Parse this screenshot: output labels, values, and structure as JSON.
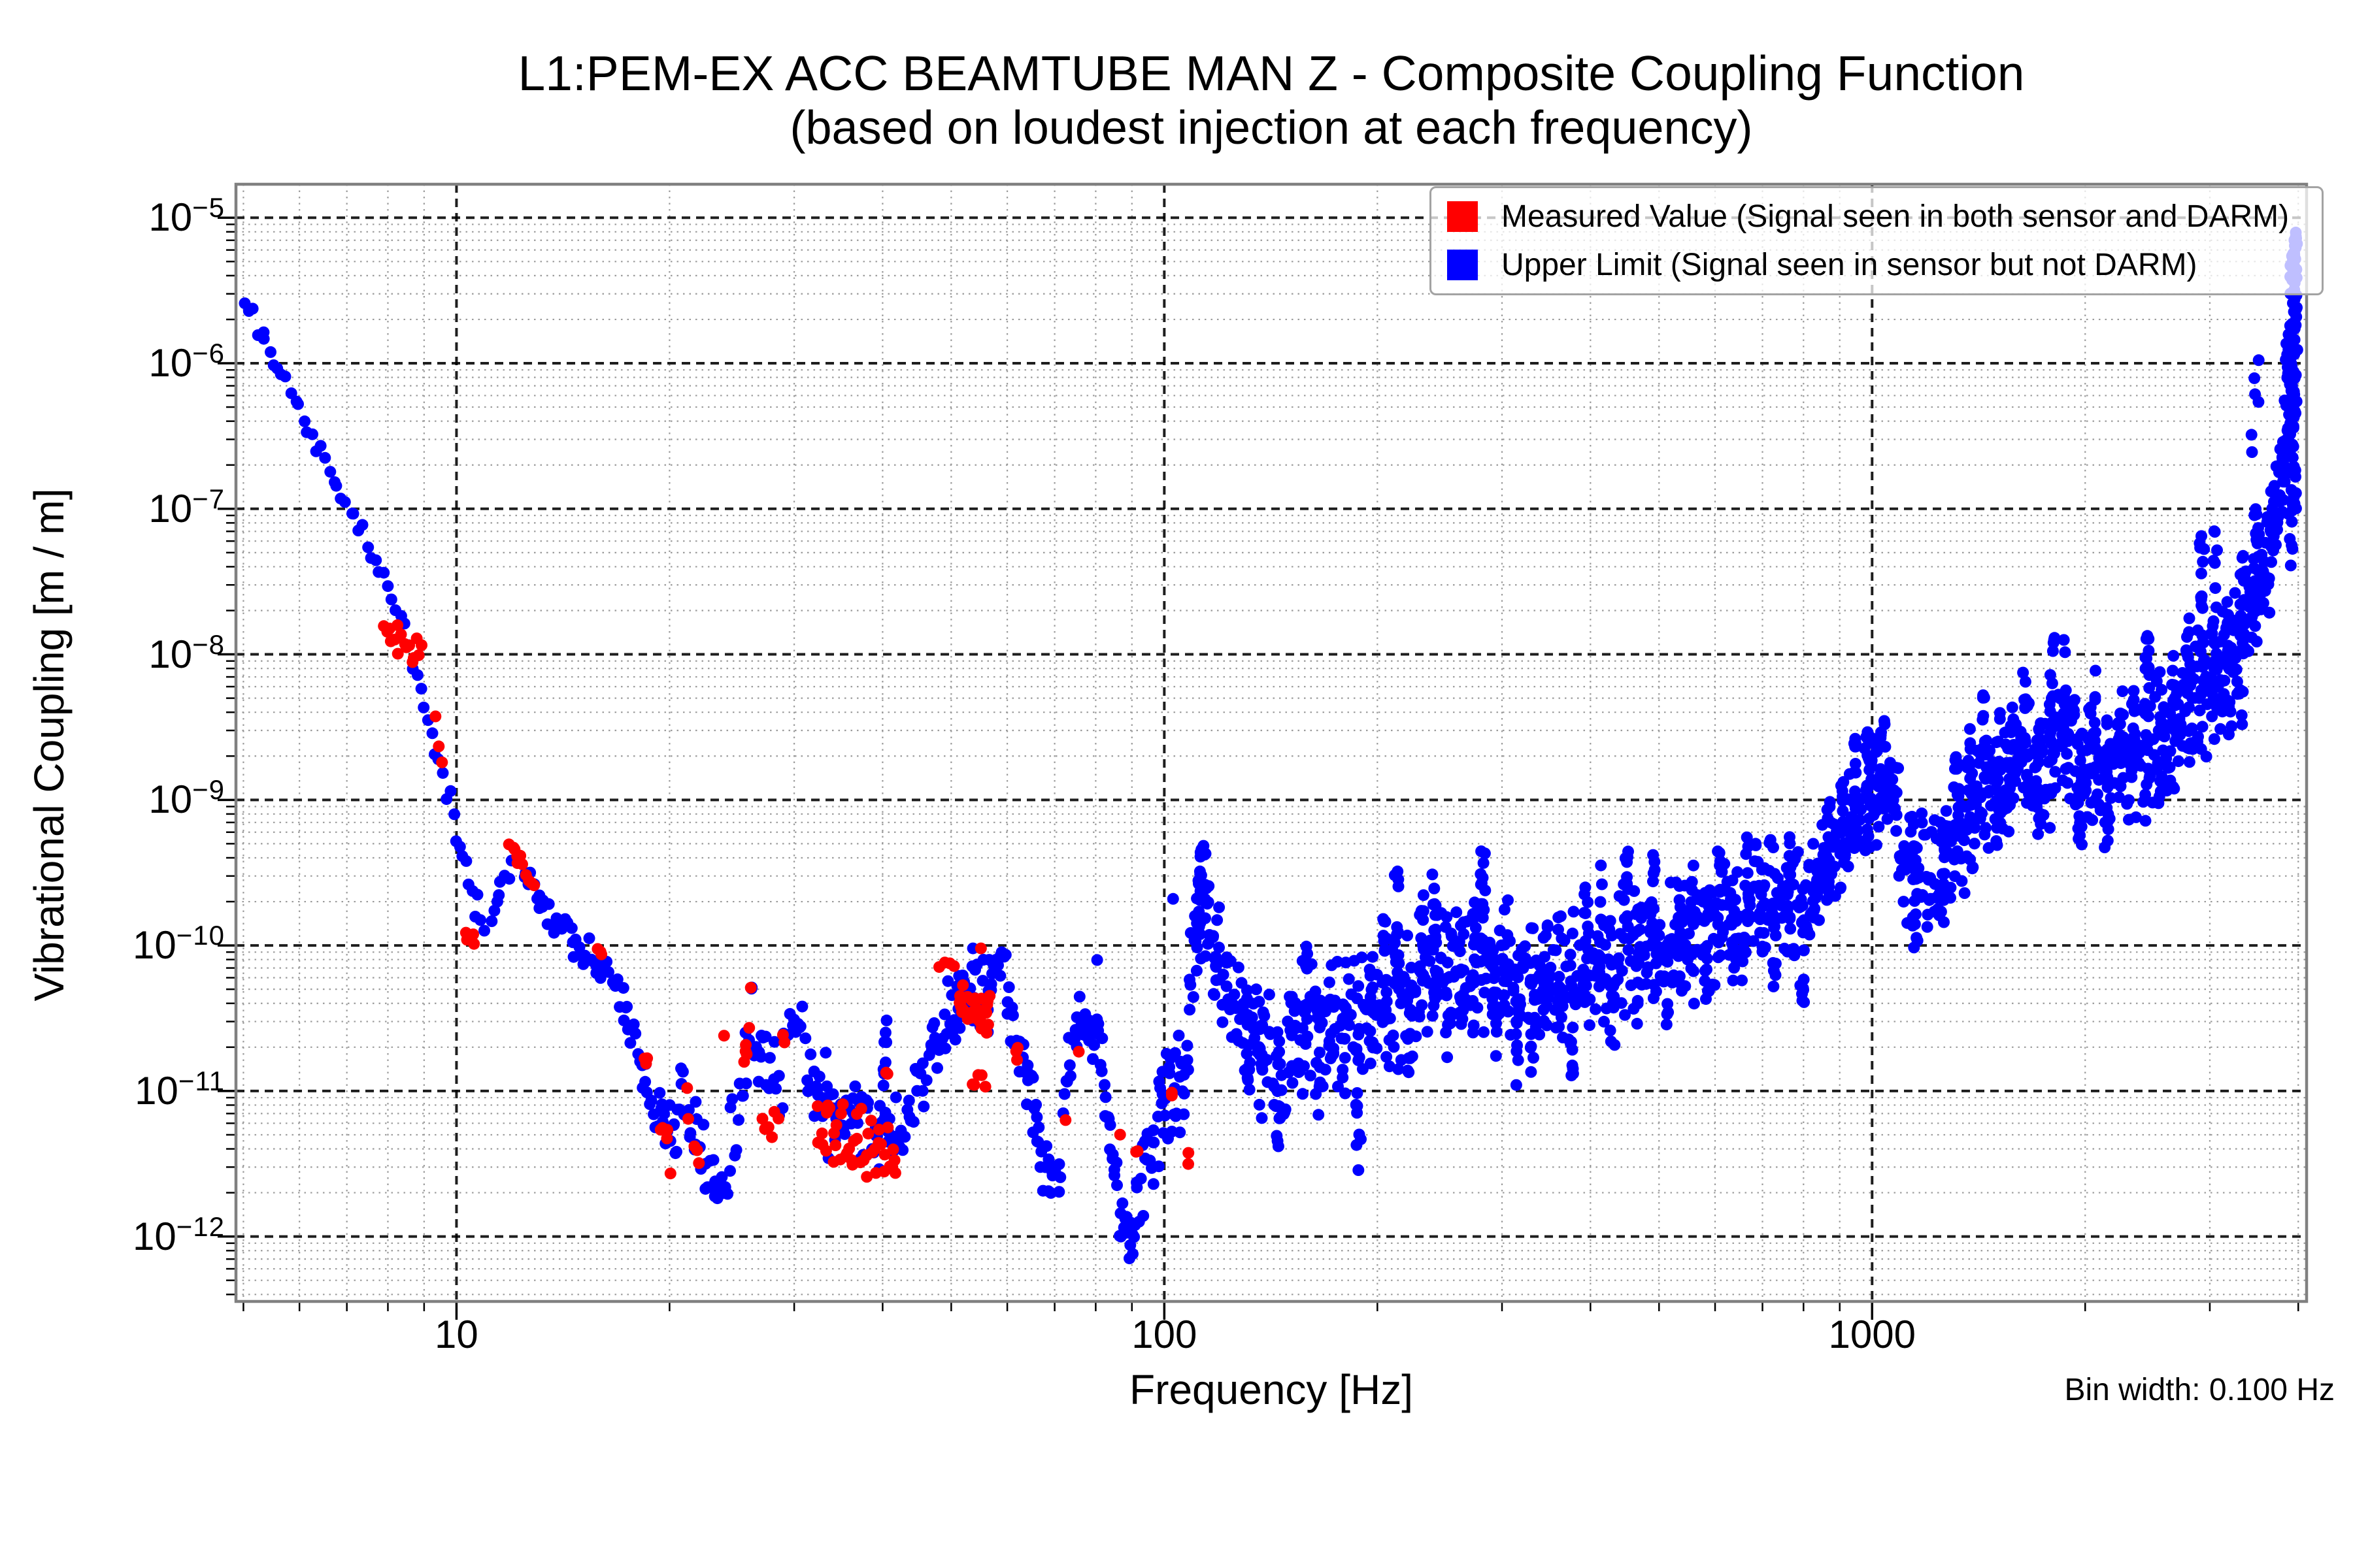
{
  "title": {
    "line1": "L1:PEM-EX ACC BEAMTUBE MAN Z - Composite Coupling Function",
    "line2": "(based on loudest injection at each frequency)"
  },
  "axes": {
    "xlabel": "Frequency [Hz]",
    "ylabel": "Vibrational Coupling [m / m]",
    "note": "Bin width: 0.100 Hz",
    "x_ticks": [
      {
        "value": 10,
        "label": "10"
      },
      {
        "value": 100,
        "label": "100"
      },
      {
        "value": 1000,
        "label": "1000"
      }
    ],
    "y_ticks": [
      {
        "mantissa": "10",
        "exponent": "−5",
        "exp": -5
      },
      {
        "mantissa": "10",
        "exponent": "−6",
        "exp": -6
      },
      {
        "mantissa": "10",
        "exponent": "−7",
        "exp": -7
      },
      {
        "mantissa": "10",
        "exponent": "−8",
        "exp": -8
      },
      {
        "mantissa": "10",
        "exponent": "−9",
        "exp": -9
      },
      {
        "mantissa": "10",
        "exponent": "−10",
        "exp": -10
      },
      {
        "mantissa": "10",
        "exponent": "−11",
        "exp": -11
      },
      {
        "mantissa": "10",
        "exponent": "−12",
        "exp": -12
      }
    ]
  },
  "legend": {
    "items": [
      {
        "name": "measured",
        "label": "Measured Value (Signal seen in both sensor and DARM)",
        "color": "#ff0000"
      },
      {
        "name": "upper-limit",
        "label": "Upper Limit (Signal seen in sensor but not DARM)",
        "color": "#0000ff"
      }
    ]
  },
  "chart_data": {
    "type": "scatter",
    "title": "L1:PEM-EX ACC BEAMTUBE MAN Z - Composite Coupling Function (based on loudest injection at each frequency)",
    "xlabel": "Frequency [Hz]",
    "ylabel": "Vibrational Coupling [m / m]",
    "bin_width_hz": 0.1,
    "x_scale": "log",
    "y_scale": "log",
    "xlim": [
      4.88,
      4110
    ],
    "ylim_exp": [
      -12.446,
      -4.77
    ],
    "grid": {
      "major_color": "#000000",
      "minor_color": "#9b9b9b",
      "major_x": [
        10,
        100,
        1000
      ],
      "major_y_exp": [
        -5,
        -6,
        -7,
        -8,
        -9,
        -10,
        -11,
        -12
      ]
    },
    "legend_position": "upper right",
    "series": [
      {
        "name": "Measured Value (Signal seen in both sensor and DARM)",
        "color": "#ff0000",
        "marker": "circle"
      },
      {
        "name": "Upper Limit (Signal seen in sensor but not DARM)",
        "color": "#0000ff",
        "marker": "circle"
      }
    ],
    "segments_format": "[f_start_hz, f_end_hz, n_points, log10_value_start, log10_value_end, jitter_dex, color(b=upper-limit, r=measured)]",
    "segments": [
      [
        5.0,
        8.2,
        36,
        -5.55,
        -7.62,
        0.05,
        "b"
      ],
      [
        8.2,
        9.7,
        13,
        -7.62,
        -8.92,
        0.1,
        "b"
      ],
      [
        7.9,
        8.95,
        16,
        -7.88,
        -8.02,
        0.1,
        "r"
      ],
      [
        9.35,
        9.6,
        3,
        -8.45,
        -8.85,
        0.05,
        "r"
      ],
      [
        9.7,
        11.0,
        13,
        -9.0,
        -9.97,
        0.12,
        "b"
      ],
      [
        10.25,
        10.65,
        5,
        -9.87,
        -10.0,
        0.05,
        "r"
      ],
      [
        11.2,
        12.0,
        9,
        -9.78,
        -9.4,
        0.07,
        "b"
      ],
      [
        11.9,
        12.45,
        7,
        -9.35,
        -9.44,
        0.05,
        "r"
      ],
      [
        12.45,
        13.6,
        12,
        -9.45,
        -9.82,
        0.07,
        "b"
      ],
      [
        12.55,
        12.95,
        4,
        -9.52,
        -9.6,
        0.04,
        "r"
      ],
      [
        13.6,
        17.0,
        30,
        -9.82,
        -10.3,
        0.1,
        "b"
      ],
      [
        15.8,
        16.2,
        3,
        -10.02,
        -10.07,
        0.03,
        "r"
      ],
      [
        17.0,
        19.2,
        20,
        -10.33,
        -11.2,
        0.13,
        "b"
      ],
      [
        18.4,
        18.7,
        3,
        -10.75,
        -10.85,
        0.06,
        "r"
      ],
      [
        19.2,
        20.5,
        16,
        -11.15,
        -11.35,
        0.22,
        "b"
      ],
      [
        19.4,
        20.1,
        5,
        -11.25,
        -11.45,
        0.15,
        "r"
      ],
      [
        20.5,
        23.2,
        24,
        -11.05,
        -11.55,
        0.25,
        "b"
      ],
      [
        21.1,
        22.2,
        5,
        -11.05,
        -11.6,
        0.12,
        "r"
      ],
      [
        23.2,
        24.2,
        9,
        -11.6,
        -11.7,
        0.15,
        "b"
      ],
      [
        23.8,
        23.9,
        1,
        -10.62,
        -10.62,
        0,
        "r"
      ],
      [
        24.2,
        26.3,
        14,
        -11.45,
        -10.7,
        0.3,
        "b"
      ],
      [
        26.1,
        26.3,
        2,
        -10.32,
        -10.28,
        0.03,
        "b"
      ],
      [
        25.4,
        26.0,
        6,
        -11.0,
        -10.4,
        0.25,
        "r"
      ],
      [
        26.3,
        28.9,
        18,
        -10.8,
        -11.0,
        0.25,
        "b"
      ],
      [
        27.0,
        28.6,
        6,
        -11.3,
        -11.1,
        0.15,
        "r"
      ],
      [
        28.9,
        31.2,
        14,
        -10.6,
        -10.6,
        0.18,
        "b"
      ],
      [
        29.0,
        29.2,
        2,
        -10.62,
        -10.66,
        0.03,
        "r"
      ],
      [
        31.2,
        42.3,
        58,
        -11.08,
        -11.3,
        0.3,
        "b"
      ],
      [
        32.3,
        42.0,
        44,
        -11.25,
        -11.5,
        0.22,
        "r"
      ],
      [
        40.2,
        40.5,
        8,
        -11.0,
        -10.5,
        0.14,
        "b"
      ],
      [
        40.5,
        40.9,
        2,
        -10.85,
        -10.95,
        0.05,
        "r"
      ],
      [
        42.3,
        47.0,
        20,
        -11.3,
        -10.75,
        0.3,
        "b"
      ],
      [
        47.0,
        51.5,
        20,
        -10.7,
        -10.42,
        0.22,
        "b"
      ],
      [
        48.0,
        51.0,
        4,
        -10.2,
        -10.12,
        0.06,
        "r"
      ],
      [
        51.0,
        57.0,
        26,
        -10.35,
        -10.3,
        0.25,
        "b"
      ],
      [
        51.3,
        56.8,
        34,
        -10.45,
        -10.45,
        0.13,
        "r"
      ],
      [
        53.5,
        56.0,
        5,
        -10.95,
        -10.95,
        0.08,
        "r"
      ],
      [
        55.0,
        55.2,
        1,
        -10.02,
        -10.02,
        0,
        "r"
      ],
      [
        56.5,
        60.0,
        12,
        -10.2,
        -10.05,
        0.1,
        "b"
      ],
      [
        60.0,
        66.8,
        30,
        -10.4,
        -11.35,
        0.18,
        "b"
      ],
      [
        61.5,
        62.3,
        3,
        -10.72,
        -10.78,
        0.05,
        "r"
      ],
      [
        66.8,
        71.5,
        15,
        -11.5,
        -11.6,
        0.16,
        "b"
      ],
      [
        72.0,
        76.0,
        14,
        -11.05,
        -10.4,
        0.2,
        "b"
      ],
      [
        72.6,
        72.9,
        1,
        -11.2,
        -11.2,
        0,
        "r"
      ],
      [
        75.8,
        76.0,
        1,
        -10.73,
        -10.73,
        0,
        "r"
      ],
      [
        76.0,
        82.0,
        22,
        -10.55,
        -10.7,
        0.2,
        "b"
      ],
      [
        80.4,
        80.6,
        1,
        -10.1,
        -10.1,
        0,
        "b"
      ],
      [
        82.0,
        86.0,
        14,
        -11.0,
        -11.7,
        0.16,
        "b"
      ],
      [
        86.0,
        91.5,
        16,
        -11.9,
        -12.0,
        0.14,
        "b"
      ],
      [
        86.2,
        86.5,
        1,
        -11.3,
        -11.3,
        0,
        "r"
      ],
      [
        89.4,
        89.6,
        1,
        -12.15,
        -12.15,
        0,
        "b"
      ],
      [
        91.3,
        91.8,
        2,
        -11.42,
        -11.5,
        0.04,
        "r"
      ],
      [
        91.5,
        99.0,
        20,
        -11.8,
        -11.1,
        0.25,
        "b"
      ],
      [
        99.0,
        107.0,
        26,
        -11.0,
        -10.95,
        0.3,
        "b"
      ],
      [
        102.4,
        102.9,
        2,
        -11.02,
        -11.08,
        0.04,
        "r"
      ],
      [
        107.5,
        108.2,
        2,
        -11.45,
        -11.52,
        0.04,
        "r"
      ],
      [
        103.0,
        103.3,
        1,
        -9.68,
        -9.68,
        0,
        "b"
      ],
      [
        107.0,
        111.5,
        14,
        -10.85,
        -9.7,
        0.3,
        "b"
      ],
      [
        112.5,
        114.5,
        6,
        -9.4,
        -9.34,
        0.05,
        "b"
      ],
      [
        118.0,
        127.0,
        20,
        -9.95,
        -10.55,
        0.3,
        "b"
      ],
      [
        127.0,
        150.0,
        45,
        -10.55,
        -10.7,
        0.35,
        "b"
      ],
      [
        150.0,
        200.0,
        70,
        -10.65,
        -10.35,
        0.37,
        "b"
      ],
      [
        200.0,
        260.0,
        70,
        -10.35,
        -10.2,
        0.4,
        "b"
      ],
      [
        260.0,
        340.0,
        75,
        -10.25,
        -10.2,
        0.4,
        "b"
      ],
      [
        340.0,
        440.0,
        75,
        -10.35,
        -10.1,
        0.37,
        "b"
      ],
      [
        440.0,
        560.0,
        75,
        -10.1,
        -9.95,
        0.4,
        "b"
      ],
      [
        560.0,
        720.0,
        80,
        -9.95,
        -9.7,
        0.37,
        "b"
      ],
      [
        720.0,
        830.0,
        50,
        -9.75,
        -9.7,
        0.33,
        "b"
      ],
      [
        830.0,
        1010.0,
        70,
        -9.55,
        -8.9,
        0.35,
        "b"
      ],
      [
        1010.0,
        1090.0,
        35,
        -8.9,
        -9.0,
        0.35,
        "b"
      ],
      [
        1090.0,
        1230.0,
        40,
        -9.45,
        -9.55,
        0.35,
        "b"
      ],
      [
        1230.0,
        1420.0,
        55,
        -9.4,
        -9.0,
        0.37,
        "b"
      ],
      [
        1420.0,
        1620.0,
        55,
        -9.0,
        -8.8,
        0.37,
        "b"
      ],
      [
        1620.0,
        1950.0,
        70,
        -8.8,
        -8.65,
        0.4,
        "b"
      ],
      [
        1950.0,
        2350.0,
        75,
        -8.8,
        -8.75,
        0.4,
        "b"
      ],
      [
        2350.0,
        2850.0,
        80,
        -8.7,
        -8.45,
        0.4,
        "b"
      ],
      [
        2850.0,
        3350.0,
        80,
        -8.3,
        -8.0,
        0.4,
        "b"
      ],
      [
        3350.0,
        3650.0,
        55,
        -7.8,
        -7.35,
        0.35,
        "b"
      ],
      [
        3650.0,
        3830.0,
        40,
        -7.25,
        -6.65,
        0.3,
        "b"
      ],
      [
        3430.0,
        3530.0,
        6,
        -6.45,
        -6.05,
        0.25,
        "b"
      ],
      [
        3830.0,
        3970.0,
        70,
        -6.6,
        -5.45,
        0.4,
        "b"
      ],
      [
        3900.0,
        3970.0,
        18,
        -5.35,
        -5.12,
        0.08,
        "b"
      ]
    ],
    "columns_format": "[f_hz, log10_value_low, log10_value_high, n_points] vertical upper-limit streaks",
    "columns": [
      [
        112,
        -10.3,
        -9.45,
        16
      ],
      [
        115,
        -10.1,
        -9.55,
        12
      ],
      [
        118,
        -10.35,
        -9.8,
        10
      ],
      [
        131,
        -11.0,
        -10.35,
        10
      ],
      [
        137,
        -11.2,
        -10.5,
        10
      ],
      [
        145,
        -11.45,
        -10.75,
        12
      ],
      [
        152,
        -11.0,
        -10.3,
        10
      ],
      [
        158,
        -10.7,
        -10.0,
        12
      ],
      [
        165,
        -11.25,
        -10.5,
        10
      ],
      [
        172,
        -10.8,
        -10.1,
        10
      ],
      [
        180,
        -11.1,
        -10.4,
        10
      ],
      [
        188,
        -11.55,
        -10.7,
        12
      ],
      [
        196,
        -10.7,
        -10.0,
        10
      ],
      [
        205,
        -10.6,
        -9.8,
        12
      ],
      [
        213,
        -10.3,
        -9.4,
        14
      ],
      [
        222,
        -10.9,
        -10.15,
        10
      ],
      [
        231,
        -10.5,
        -9.65,
        12
      ],
      [
        241,
        -10.4,
        -9.35,
        16
      ],
      [
        252,
        -10.9,
        -10.05,
        10
      ],
      [
        263,
        -10.6,
        -9.85,
        10
      ],
      [
        273,
        -10.4,
        -9.55,
        12
      ],
      [
        282,
        -10.15,
        -9.35,
        15
      ],
      [
        293,
        -10.8,
        -9.95,
        10
      ],
      [
        304,
        -10.5,
        -9.6,
        12
      ],
      [
        316,
        -11.15,
        -10.35,
        10
      ],
      [
        331,
        -10.95,
        -10.25,
        10
      ],
      [
        346,
        -10.6,
        -9.85,
        10
      ],
      [
        362,
        -10.4,
        -9.75,
        10
      ],
      [
        378,
        -10.9,
        -10.15,
        10
      ],
      [
        395,
        -10.4,
        -9.55,
        12
      ],
      [
        412,
        -10.25,
        -9.45,
        12
      ],
      [
        430,
        -10.95,
        -10.25,
        10
      ],
      [
        449,
        -10.1,
        -9.35,
        14
      ],
      [
        469,
        -10.4,
        -9.65,
        10
      ],
      [
        490,
        -10.05,
        -9.3,
        14
      ],
      [
        512,
        -10.55,
        -9.85,
        10
      ],
      [
        535,
        -10.35,
        -9.65,
        10
      ],
      [
        559,
        -10.1,
        -9.45,
        10
      ],
      [
        584,
        -10.45,
        -9.75,
        10
      ],
      [
        610,
        -9.95,
        -9.35,
        10
      ],
      [
        638,
        -10.25,
        -9.55,
        10
      ],
      [
        667,
        -9.85,
        -9.25,
        10
      ],
      [
        697,
        -10.05,
        -9.45,
        10
      ],
      [
        728,
        -10.35,
        -9.65,
        10
      ],
      [
        761,
        -9.85,
        -9.25,
        10
      ],
      [
        795,
        -10.45,
        -9.75,
        10
      ],
      [
        831,
        -9.9,
        -9.2,
        10
      ],
      [
        868,
        -9.65,
        -8.95,
        12
      ],
      [
        907,
        -9.45,
        -8.75,
        12
      ],
      [
        948,
        -9.25,
        -8.55,
        14
      ],
      [
        991,
        -9.35,
        -8.45,
        18
      ],
      [
        1036,
        -9.1,
        -8.45,
        12
      ],
      [
        1150,
        -10.05,
        -9.25,
        12
      ],
      [
        1262,
        -9.85,
        -9.05,
        12
      ],
      [
        1319,
        -9.35,
        -8.65,
        12
      ],
      [
        1379,
        -9.25,
        -8.5,
        12
      ],
      [
        1441,
        -8.95,
        -8.25,
        12
      ],
      [
        1506,
        -9.35,
        -8.4,
        14
      ],
      [
        1574,
        -9.05,
        -8.35,
        12
      ],
      [
        1645,
        -8.85,
        -8.1,
        12
      ],
      [
        1719,
        -9.25,
        -8.45,
        12
      ],
      [
        1797,
        -8.75,
        -7.85,
        16
      ],
      [
        1878,
        -8.65,
        -7.8,
        16
      ],
      [
        1963,
        -9.35,
        -8.55,
        12
      ],
      [
        2052,
        -8.95,
        -8.05,
        14
      ],
      [
        2144,
        -9.45,
        -8.65,
        12
      ],
      [
        2241,
        -9.0,
        -8.25,
        12
      ],
      [
        2342,
        -8.85,
        -8.15,
        12
      ],
      [
        2448,
        -8.65,
        -7.85,
        14
      ],
      [
        2559,
        -9.05,
        -8.35,
        12
      ],
      [
        2674,
        -8.55,
        -7.95,
        12
      ],
      [
        2795,
        -8.45,
        -7.65,
        14
      ],
      [
        2921,
        -8.35,
        -7.15,
        16
      ],
      [
        3053,
        -8.25,
        -7.1,
        16
      ],
      [
        3191,
        -8.45,
        -7.55,
        12
      ],
      [
        3335,
        -8.1,
        -7.3,
        12
      ],
      [
        3486,
        -7.55,
        -6.85,
        12
      ],
      [
        3900,
        -7.4,
        -6.3,
        18
      ],
      [
        3940,
        -7.1,
        -5.7,
        22
      ],
      [
        3962,
        -6.4,
        -5.2,
        22
      ]
    ],
    "colors": {
      "measured": "#ff0000",
      "upper_limit": "#0000ff"
    }
  }
}
